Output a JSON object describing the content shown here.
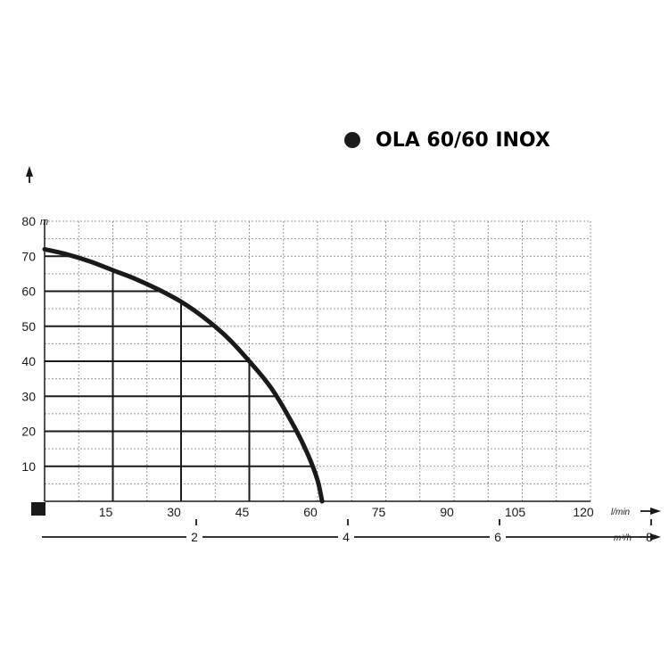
{
  "chart_data": {
    "type": "line",
    "title": "OLA 60/60 INOX",
    "xlabel": "l/min",
    "ylabel": "m",
    "secondary_xlabel": "m³/h",
    "xlim": [
      0,
      120
    ],
    "ylim": [
      0,
      80
    ],
    "x_ticks": [
      "15",
      "30",
      "45",
      "60",
      "75",
      "90",
      "105",
      "120"
    ],
    "y_ticks": [
      "10",
      "20",
      "30",
      "40",
      "50",
      "60",
      "70",
      "80"
    ],
    "secondary_ticks": [
      "2",
      "4",
      "6",
      "8"
    ],
    "grid": true,
    "series": [
      {
        "x": [
          0,
          5,
          10,
          15,
          20,
          25,
          30,
          35,
          40,
          45,
          50,
          55,
          58,
          60,
          61
        ],
        "y": [
          72,
          70.5,
          68.5,
          66,
          63.5,
          60.5,
          57,
          52.5,
          47,
          40,
          32,
          21,
          13,
          6,
          0
        ]
      }
    ],
    "operating_lines": [
      {
        "y": 70
      },
      {
        "y": 60
      },
      {
        "y": 50
      },
      {
        "y": 40
      },
      {
        "y": 30
      },
      {
        "y": 20
      },
      {
        "y": 10
      }
    ],
    "operating_verticals": [
      {
        "x": 15
      },
      {
        "x": 30
      },
      {
        "x": 45
      }
    ],
    "colors": {
      "curve": "#1a1a1a",
      "grid": "#999999"
    }
  }
}
